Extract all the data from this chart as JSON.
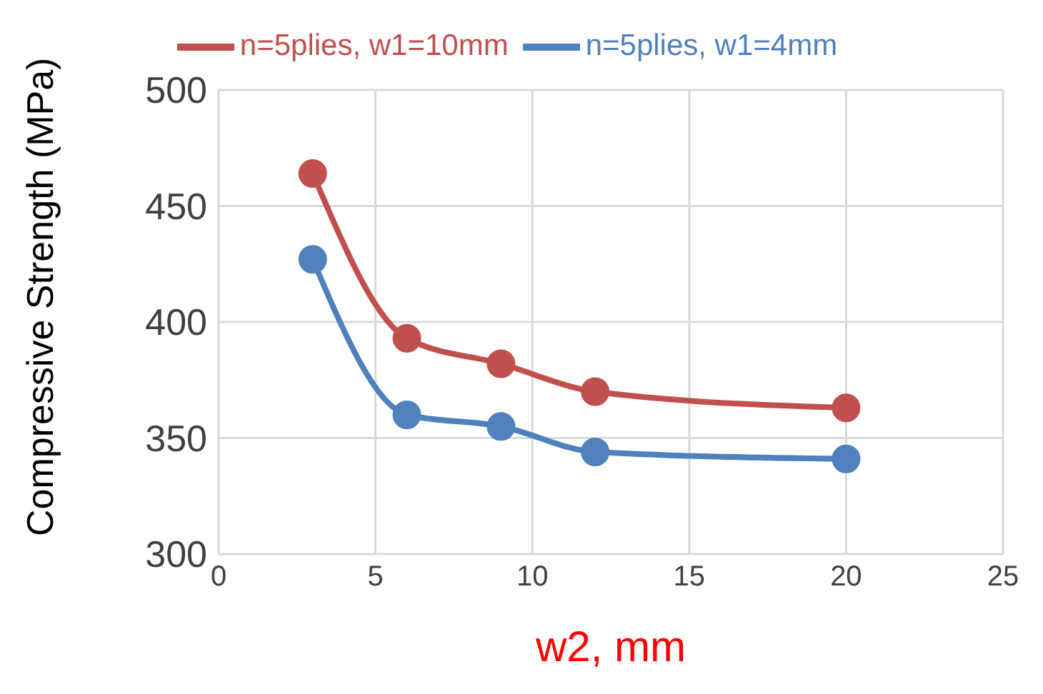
{
  "chart_data": {
    "type": "line",
    "xlabel": "w2, mm",
    "ylabel": "Compressive Strength (MPa)",
    "x": [
      3,
      6,
      9,
      12,
      20
    ],
    "series": [
      {
        "name": "n=5plies, w1=4mm",
        "color": "#4f81bd",
        "values": [
          427,
          360,
          355,
          344,
          341
        ]
      },
      {
        "name": "n=5plies, w1=10mm",
        "color": "#c0504d",
        "values": [
          464,
          393,
          382,
          370,
          363
        ]
      }
    ],
    "xlim": [
      0,
      25
    ],
    "xticks": [
      0,
      5,
      10,
      15,
      20,
      25
    ],
    "ylim": [
      300,
      500
    ],
    "yticks": [
      300,
      350,
      400,
      450,
      500
    ],
    "grid": true,
    "legend": "top",
    "marker": "circle",
    "line_style": "solid"
  }
}
